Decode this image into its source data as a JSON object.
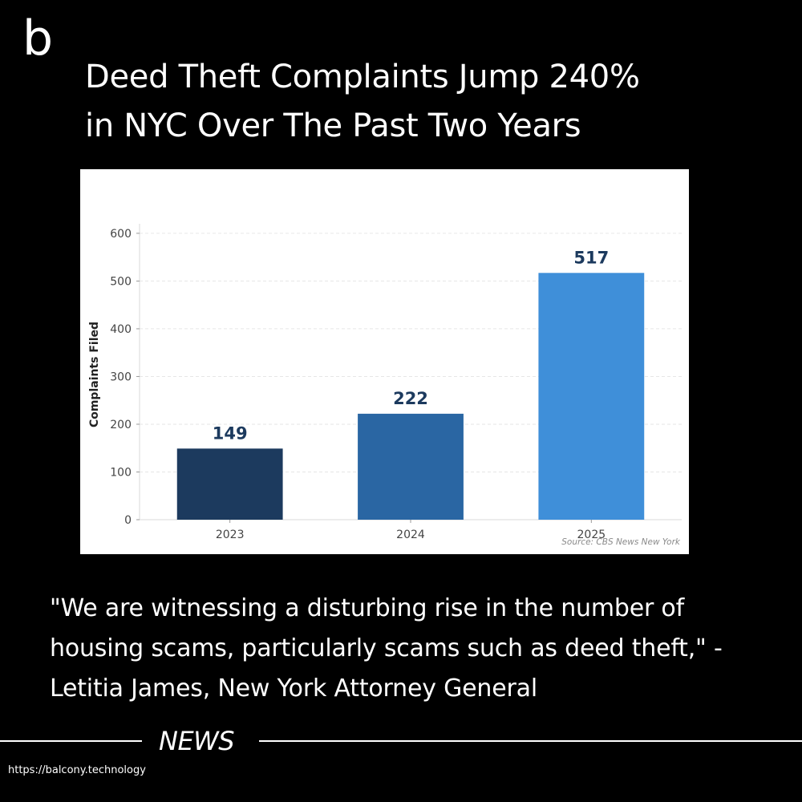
{
  "brand": {
    "logo": "b"
  },
  "headline": {
    "line1": "Deed Theft Complaints Jump 240%",
    "line2": "in NYC Over The Past Two Years"
  },
  "quote": "\"We are witnessing a disturbing rise in the number of housing scams, particularly scams such as deed theft,\" - Letitia James, New York Attorney General",
  "section_label": "NEWS",
  "footer_url": "https://balcony.technology",
  "chart_data": {
    "type": "bar",
    "categories": [
      "2023",
      "2024",
      "2025"
    ],
    "values": [
      149,
      222,
      517
    ],
    "data_labels": [
      "149",
      "222",
      "517"
    ],
    "bar_colors": [
      "#1c3a5e",
      "#2a66a3",
      "#3f8fd9"
    ],
    "label_color": "#1c3a5e",
    "title": "",
    "xlabel": "",
    "ylabel": "Complaints Filed",
    "ylim": [
      0,
      620
    ],
    "yticks": [
      0,
      100,
      200,
      300,
      400,
      500,
      600
    ],
    "grid": true,
    "source": "Source: CBS News New York"
  }
}
